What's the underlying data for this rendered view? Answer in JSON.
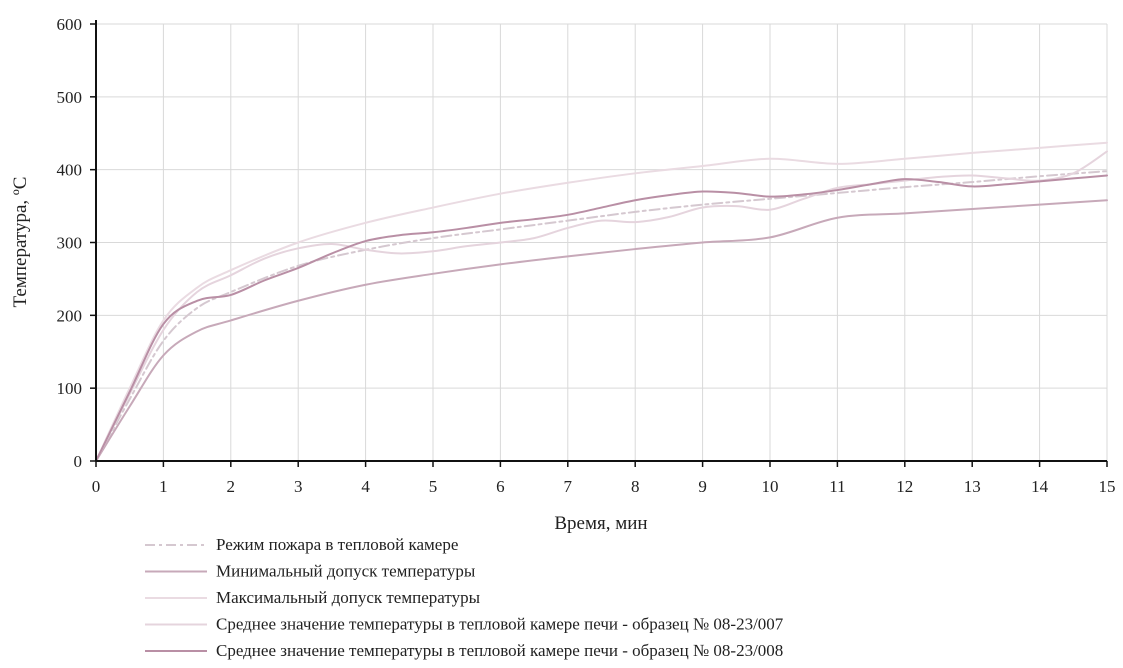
{
  "chart_data": {
    "type": "line",
    "xlabel": "Время, мин",
    "ylabel": "Температура, ºС",
    "xlim": [
      0,
      15
    ],
    "ylim": [
      0,
      600
    ],
    "x_ticks": [
      "0",
      "1",
      "2",
      "3",
      "4",
      "5",
      "6",
      "7",
      "8",
      "9",
      "10",
      "11",
      "12",
      "13",
      "14",
      "15"
    ],
    "y_ticks": [
      "0",
      "100",
      "200",
      "300",
      "400",
      "500",
      "600"
    ],
    "grid": true,
    "legend_position": "bottom",
    "series": [
      {
        "name": "Режим пожара в тепловой камере",
        "color": "#d5c8d0",
        "dash": "dash-dot",
        "x": [
          0,
          0.5,
          1,
          1.5,
          2,
          3,
          4,
          5,
          6,
          7,
          8,
          9,
          10,
          11,
          12,
          13,
          14,
          15
        ],
        "y": [
          0,
          85,
          165,
          210,
          232,
          268,
          290,
          306,
          318,
          330,
          342,
          352,
          360,
          368,
          376,
          383,
          391,
          398
        ]
      },
      {
        "name": "Минимальный допуск температуры",
        "color": "#c7a9b9",
        "dash": "solid",
        "x": [
          0,
          0.5,
          1,
          1.5,
          2,
          3,
          4,
          5,
          6,
          7,
          8,
          9,
          10,
          11,
          12,
          13,
          14,
          15
        ],
        "y": [
          0,
          75,
          145,
          178,
          193,
          220,
          242,
          257,
          270,
          281,
          291,
          300,
          307,
          334,
          340,
          346,
          352,
          358
        ]
      },
      {
        "name": "Максимальный допуск температуры",
        "color": "#eadbe2",
        "dash": "solid",
        "x": [
          0,
          0.5,
          1,
          1.5,
          2,
          3,
          4,
          5,
          6,
          7,
          8,
          9,
          10,
          11,
          12,
          13,
          14,
          15
        ],
        "y": [
          0,
          100,
          193,
          238,
          262,
          300,
          327,
          348,
          367,
          382,
          395,
          405,
          415,
          408,
          415,
          423,
          430,
          437
        ]
      },
      {
        "name": "Среднее значение температуры в тепловой камере печи - образец № 08-23/007",
        "color": "#e5d4dd",
        "dash": "solid",
        "x": [
          0,
          0.5,
          1,
          1.5,
          2,
          2.5,
          3,
          3.5,
          4,
          4.5,
          5,
          5.5,
          6,
          6.5,
          7,
          7.5,
          8,
          8.5,
          9,
          9.5,
          10,
          10.5,
          11,
          11.5,
          12,
          12.5,
          13,
          13.5,
          14,
          14.5,
          15
        ],
        "y": [
          0,
          92,
          180,
          232,
          255,
          278,
          292,
          298,
          290,
          285,
          288,
          295,
          300,
          306,
          320,
          330,
          328,
          335,
          348,
          350,
          345,
          360,
          375,
          380,
          385,
          390,
          392,
          388,
          385,
          395,
          425
        ]
      },
      {
        "name": "Среднее значение температуры в тепловой камере печи - образец № 08-23/008",
        "color": "#b98fa5",
        "dash": "solid",
        "x": [
          0,
          0.5,
          1,
          1.5,
          2,
          2.5,
          3,
          3.5,
          4,
          4.5,
          5,
          5.5,
          6,
          6.5,
          7,
          7.5,
          8,
          8.5,
          9,
          9.5,
          10,
          10.5,
          11,
          11.5,
          12,
          12.5,
          13,
          13.5,
          14,
          14.5,
          15
        ],
        "y": [
          0,
          95,
          188,
          220,
          228,
          248,
          265,
          285,
          302,
          310,
          314,
          320,
          327,
          332,
          338,
          348,
          358,
          365,
          370,
          368,
          363,
          366,
          372,
          380,
          387,
          383,
          377,
          380,
          384,
          388,
          392
        ]
      }
    ]
  }
}
